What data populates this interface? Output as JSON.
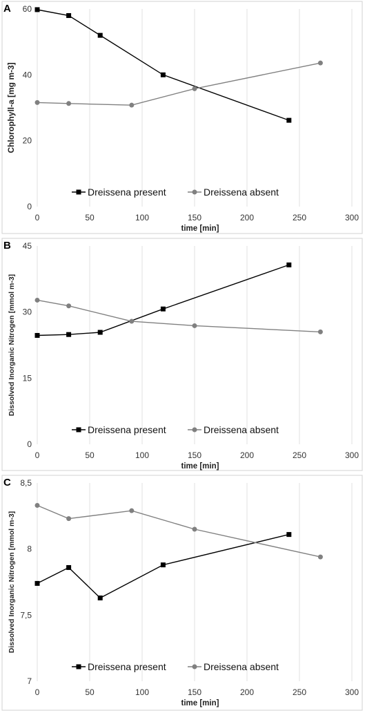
{
  "colors": {
    "present": "#000000",
    "absent": "#808080"
  },
  "chart_data": [
    {
      "panel": "A",
      "type": "line",
      "xlabel": "time [min]",
      "ylabel": "Chlorophyll-a [mg m-3]",
      "xlim": [
        0,
        300
      ],
      "xticks": [
        "0",
        "50",
        "100",
        "150",
        "200",
        "250",
        "300"
      ],
      "xtick_values": [
        0,
        50,
        100,
        150,
        200,
        250,
        300
      ],
      "ylim": [
        0,
        60
      ],
      "yticks": [
        "0",
        "20",
        "40",
        "60"
      ],
      "ytick_values": [
        0,
        20,
        40,
        60
      ],
      "grid": "vertical",
      "legend_position": "bottom",
      "series": [
        {
          "name": "Dreissena present",
          "marker": "square",
          "color": "#000000",
          "x": [
            0,
            30,
            60,
            120,
            240
          ],
          "y": [
            59.8,
            58,
            52,
            40,
            26.2
          ]
        },
        {
          "name": "Dreissena absent",
          "marker": "circle",
          "color": "#808080",
          "x": [
            0,
            30,
            90,
            150,
            270
          ],
          "y": [
            31.6,
            31.3,
            30.8,
            35.8,
            43.6
          ]
        }
      ]
    },
    {
      "panel": "B",
      "type": "line",
      "xlabel": "time [min]",
      "ylabel": "Dissolved Inorganic Nitrogen [mmol m-3]",
      "xlim": [
        0,
        300
      ],
      "xticks": [
        "0",
        "50",
        "100",
        "150",
        "200",
        "250",
        "300"
      ],
      "xtick_values": [
        0,
        50,
        100,
        150,
        200,
        250,
        300
      ],
      "ylim": [
        0,
        45
      ],
      "yticks": [
        "0",
        "15",
        "30",
        "45"
      ],
      "ytick_values": [
        0,
        15,
        30,
        45
      ],
      "grid": "vertical",
      "legend_position": "bottom",
      "series": [
        {
          "name": "Dreissena present",
          "marker": "square",
          "color": "#000000",
          "x": [
            0,
            30,
            60,
            120,
            240
          ],
          "y": [
            24.7,
            24.9,
            25.4,
            30.7,
            40.7
          ]
        },
        {
          "name": "Dreissena absent",
          "marker": "circle",
          "color": "#808080",
          "x": [
            0,
            30,
            90,
            150,
            270
          ],
          "y": [
            32.7,
            31.4,
            27.9,
            26.9,
            25.5
          ]
        }
      ]
    },
    {
      "panel": "C",
      "type": "line",
      "xlabel": "time [min]",
      "ylabel": "Dissolved Inorganic Nitrogen [mmol m-3]",
      "xlim": [
        0,
        300
      ],
      "xticks": [
        "0",
        "50",
        "100",
        "150",
        "200",
        "250",
        "300"
      ],
      "xtick_values": [
        0,
        50,
        100,
        150,
        200,
        250,
        300
      ],
      "ylim": [
        7,
        8.5
      ],
      "yticks": [
        "7",
        "7,5",
        "8",
        "8,5"
      ],
      "ytick_values": [
        7,
        7.5,
        8,
        8.5
      ],
      "grid": "vertical",
      "legend_position": "bottom",
      "series": [
        {
          "name": "Dreissena present",
          "marker": "square",
          "color": "#000000",
          "x": [
            0,
            30,
            60,
            120,
            240
          ],
          "y": [
            7.74,
            7.86,
            7.63,
            7.88,
            8.11
          ]
        },
        {
          "name": "Dreissena absent",
          "marker": "circle",
          "color": "#808080",
          "x": [
            0,
            30,
            90,
            150,
            270
          ],
          "y": [
            8.33,
            8.23,
            8.29,
            8.15,
            7.94
          ]
        }
      ]
    }
  ]
}
